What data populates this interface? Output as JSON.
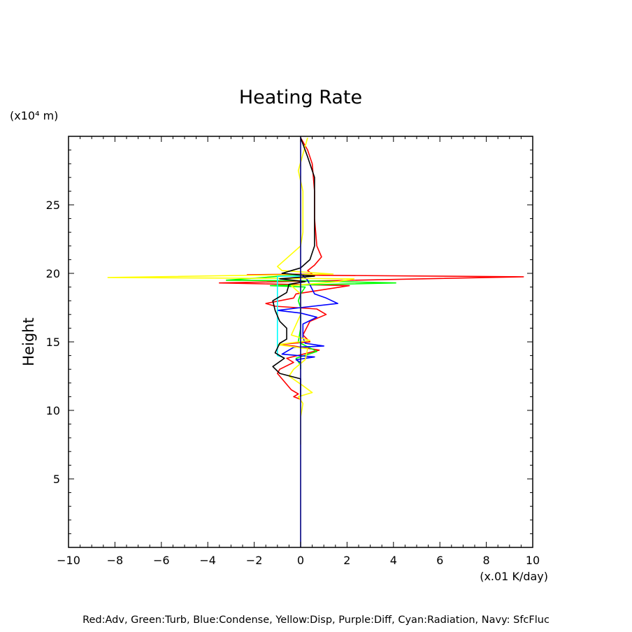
{
  "chart_data": {
    "type": "line",
    "title": "Heating Rate",
    "xlabel": "(x.01 K/day)",
    "ylabel": "Height",
    "yunit": "(x10⁴ m)",
    "xlim": [
      -10,
      10
    ],
    "ylim": [
      0,
      30
    ],
    "xticks": [
      -10,
      -8,
      -6,
      -4,
      -2,
      0,
      2,
      4,
      6,
      8,
      10
    ],
    "xtick_labels": [
      "−10",
      "−8",
      "−6",
      "−4",
      "−2",
      "0",
      "2",
      "4",
      "6",
      "8",
      "10"
    ],
    "yticks": [
      5,
      10,
      15,
      20,
      25
    ],
    "ytick_labels": [
      "5",
      "10",
      "15",
      "20",
      "25"
    ],
    "grid": false,
    "legend_note": "Red:Adv, Green:Turb, Blue:Condense, Yellow:Disp, Purple:Diff, Cyan:Radiation, Navy: SfcFluc",
    "series": [
      {
        "color": "#ff0000",
        "points": [
          [
            0,
            29.9
          ],
          [
            0.3,
            29
          ],
          [
            0.5,
            28
          ],
          [
            0.6,
            26
          ],
          [
            0.6,
            24
          ],
          [
            0.7,
            22
          ],
          [
            0.9,
            21.2
          ],
          [
            0.6,
            20.6
          ],
          [
            0.3,
            20.2
          ],
          [
            0.5,
            19.95
          ],
          [
            -2.3,
            19.9
          ],
          [
            9.6,
            19.75
          ],
          [
            -3.5,
            19.3
          ],
          [
            2.1,
            19.1
          ],
          [
            -0.2,
            18.5
          ],
          [
            -0.3,
            18.2
          ],
          [
            -1.5,
            17.8
          ],
          [
            -1.1,
            17.6
          ],
          [
            0.7,
            17.4
          ],
          [
            1.1,
            17
          ],
          [
            0.4,
            16.5
          ],
          [
            0.1,
            15.5
          ],
          [
            0.4,
            15
          ],
          [
            -1,
            14.8
          ],
          [
            -0.3,
            14.7
          ],
          [
            0.8,
            14.4
          ],
          [
            -0.6,
            13.8
          ],
          [
            -0.3,
            13.5
          ],
          [
            -0.9,
            13
          ],
          [
            -1,
            12.7
          ],
          [
            -0.4,
            11.5
          ],
          [
            -0.1,
            11.2
          ],
          [
            -0.3,
            11
          ],
          [
            0,
            10.8
          ]
        ]
      },
      {
        "color": "#00ff00",
        "points": [
          [
            0,
            19.9
          ],
          [
            -3.2,
            19.5
          ],
          [
            0.3,
            19.45
          ],
          [
            4.1,
            19.3
          ],
          [
            -1.3,
            19.1
          ],
          [
            0.2,
            19
          ],
          [
            0,
            18.5
          ],
          [
            -0.1,
            18
          ],
          [
            0,
            17.5
          ],
          [
            0,
            16
          ],
          [
            -0.1,
            15
          ],
          [
            0,
            14.9
          ],
          [
            0.7,
            14.3
          ],
          [
            -0.2,
            13.8
          ],
          [
            0,
            13.3
          ],
          [
            0,
            13
          ]
        ]
      },
      {
        "color": "#0000ff",
        "points": [
          [
            0,
            20
          ],
          [
            0.3,
            19.5
          ],
          [
            0.6,
            18.5
          ],
          [
            1.1,
            18.2
          ],
          [
            1.6,
            17.8
          ],
          [
            0,
            17.5
          ],
          [
            -1,
            17.3
          ],
          [
            0,
            17.1
          ],
          [
            0.7,
            16.8
          ],
          [
            0.1,
            16.3
          ],
          [
            0.1,
            15.3
          ],
          [
            0.2,
            14.9
          ],
          [
            1,
            14.7
          ],
          [
            -0.3,
            14.6
          ],
          [
            -0.8,
            14.1
          ],
          [
            0.6,
            13.9
          ],
          [
            -0.2,
            13.7
          ],
          [
            0,
            13.5
          ]
        ]
      },
      {
        "color": "#ffff00",
        "points": [
          [
            0.3,
            29.9
          ],
          [
            -0.1,
            27.5
          ],
          [
            0.1,
            26
          ],
          [
            0.1,
            23
          ],
          [
            0,
            22
          ],
          [
            -1,
            20.5
          ],
          [
            -0.8,
            20.2
          ],
          [
            1.4,
            19.95
          ],
          [
            -8.3,
            19.7
          ],
          [
            2.3,
            19.6
          ],
          [
            1.6,
            19.4
          ],
          [
            -0.4,
            19.1
          ],
          [
            0,
            18.5
          ],
          [
            0,
            17
          ],
          [
            -0.4,
            15.5
          ],
          [
            0.4,
            15.1
          ],
          [
            -1,
            14.8
          ],
          [
            0.3,
            14.5
          ],
          [
            0.2,
            13.7
          ],
          [
            -0.3,
            13
          ],
          [
            -0.5,
            12.5
          ],
          [
            0.1,
            11.8
          ],
          [
            0.5,
            11.3
          ],
          [
            -0.1,
            11
          ],
          [
            0.1,
            10.5
          ],
          [
            0,
            9.5
          ],
          [
            0,
            7.5
          ]
        ]
      },
      {
        "color": "#00ffff",
        "points": [
          [
            0,
            19.8
          ],
          [
            -1,
            19.8
          ],
          [
            -1,
            14
          ],
          [
            -0.8,
            13.9
          ]
        ]
      },
      {
        "color": "#000000",
        "points": [
          [
            0,
            29.9
          ],
          [
            0.3,
            28.5
          ],
          [
            0.6,
            27
          ],
          [
            0.6,
            24
          ],
          [
            0.6,
            22
          ],
          [
            0.4,
            21
          ],
          [
            0,
            20.4
          ],
          [
            -0.8,
            20
          ],
          [
            0.6,
            19.8
          ],
          [
            -0.9,
            19.6
          ],
          [
            0.2,
            19.4
          ],
          [
            -0.5,
            19.2
          ],
          [
            -0.6,
            18.6
          ],
          [
            -1.2,
            18
          ],
          [
            -1.1,
            17.3
          ],
          [
            -0.9,
            16.5
          ],
          [
            -0.6,
            16
          ],
          [
            -0.6,
            15.2
          ],
          [
            -0.9,
            14.9
          ],
          [
            -1.1,
            14.2
          ],
          [
            -0.7,
            13.8
          ],
          [
            -1.2,
            13.2
          ],
          [
            -0.9,
            12.7
          ],
          [
            0,
            12.3
          ],
          [
            0,
            11
          ]
        ]
      },
      {
        "color": "#000080",
        "points": [
          [
            0,
            0
          ],
          [
            0,
            30
          ]
        ]
      }
    ]
  },
  "footer": {
    "legend_text": "Red:Adv, Green:Turb, Blue:Condense, Yellow:Disp, Purple:Diff, Cyan:Radiation, Navy: SfcFluc"
  }
}
